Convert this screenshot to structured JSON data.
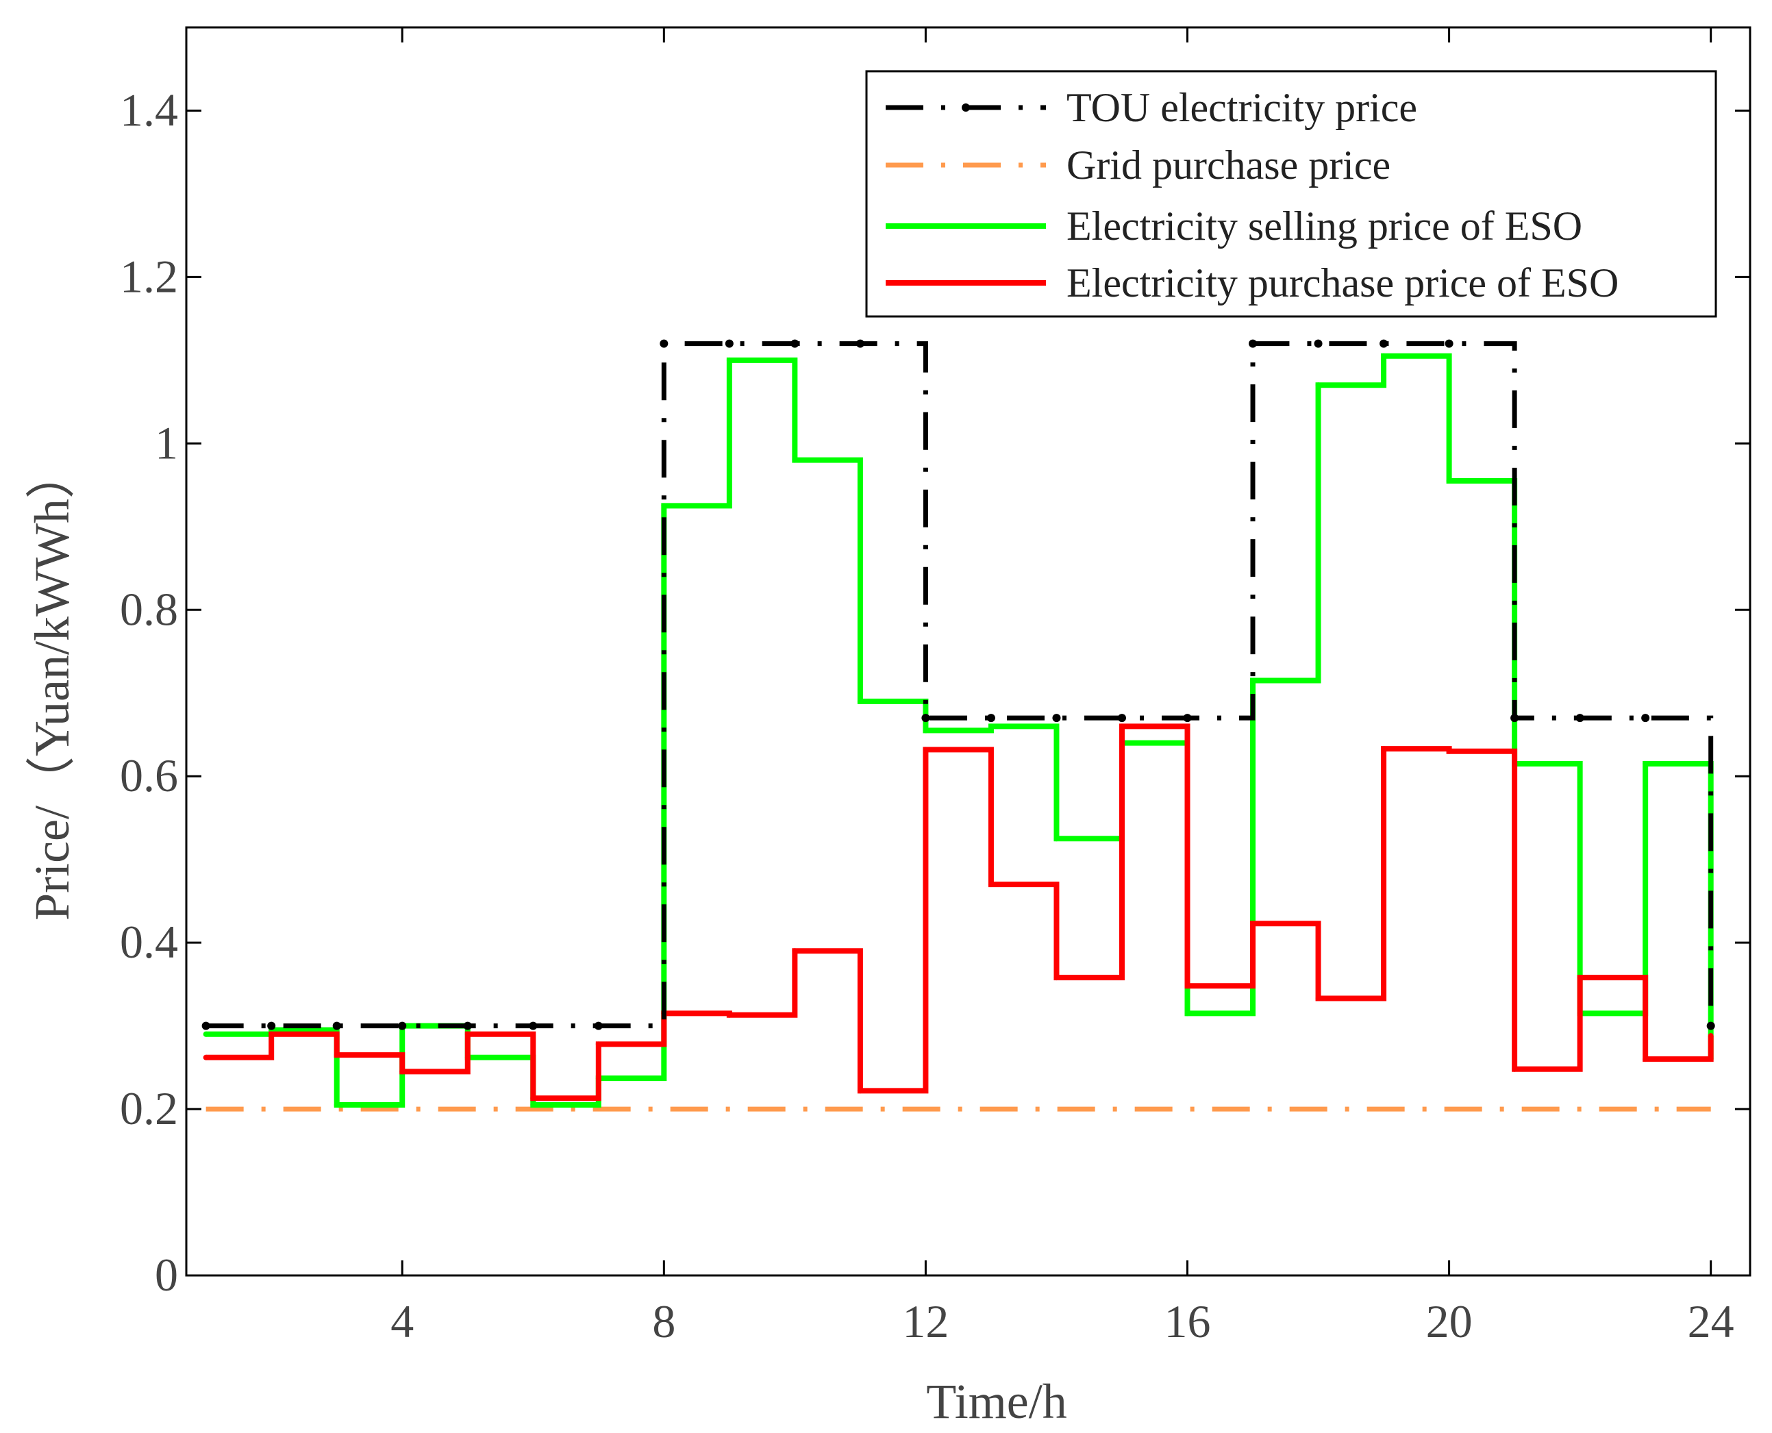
{
  "chart_data": {
    "type": "line",
    "step": true,
    "xlabel": "Time/h",
    "ylabel": "Price/（Yuan/kWWh）",
    "xlim": [
      0.7,
      24.6
    ],
    "ylim": [
      0,
      1.5
    ],
    "x_ticks": [
      4,
      8,
      12,
      16,
      20,
      24
    ],
    "x_tick_labels": [
      "4",
      "8",
      "12",
      "16",
      "20",
      "24"
    ],
    "y_ticks": [
      0,
      0.2,
      0.4,
      0.6,
      0.8,
      1,
      1.2,
      1.4
    ],
    "y_tick_labels": [
      "0",
      "0.2",
      "0.4",
      "0.6",
      "0.8",
      "1",
      "1.2",
      "1.4"
    ],
    "legend_position": "top-right",
    "x": [
      1,
      2,
      3,
      4,
      5,
      6,
      7,
      8,
      9,
      10,
      11,
      12,
      13,
      14,
      15,
      16,
      17,
      18,
      19,
      20,
      21,
      22,
      23,
      24
    ],
    "series": [
      {
        "name": "TOU electricity price",
        "color": "#000000",
        "style": "dash-dot-markers",
        "values": [
          0.3,
          0.3,
          0.3,
          0.3,
          0.3,
          0.3,
          0.3,
          1.12,
          1.12,
          1.12,
          1.12,
          0.67,
          0.67,
          0.67,
          0.67,
          0.67,
          1.12,
          1.12,
          1.12,
          1.12,
          0.67,
          0.67,
          0.67,
          0.3
        ]
      },
      {
        "name": "Grid purchase price",
        "color": "#FF9A4D",
        "style": "dash-dot",
        "values": [
          0.2,
          0.2,
          0.2,
          0.2,
          0.2,
          0.2,
          0.2,
          0.2,
          0.2,
          0.2,
          0.2,
          0.2,
          0.2,
          0.2,
          0.2,
          0.2,
          0.2,
          0.2,
          0.2,
          0.2,
          0.2,
          0.2,
          0.2,
          0.2
        ]
      },
      {
        "name": "Electricity selling price of ESO",
        "color": "#00FF00",
        "style": "solid",
        "values": [
          0.29,
          0.295,
          0.205,
          0.3,
          0.262,
          0.205,
          0.237,
          0.925,
          1.1,
          0.98,
          0.69,
          0.655,
          0.66,
          0.525,
          0.64,
          0.315,
          0.715,
          1.07,
          1.105,
          0.955,
          0.615,
          0.315,
          0.615,
          0.26
        ]
      },
      {
        "name": "Electricity purchase price of ESO",
        "color": "#FF0000",
        "style": "solid",
        "values": [
          0.262,
          0.29,
          0.265,
          0.245,
          0.29,
          0.213,
          0.278,
          0.315,
          0.313,
          0.39,
          0.222,
          0.632,
          0.47,
          0.358,
          0.66,
          0.348,
          0.423,
          0.333,
          0.633,
          0.63,
          0.248,
          0.358,
          0.26,
          0.288
        ]
      }
    ]
  }
}
